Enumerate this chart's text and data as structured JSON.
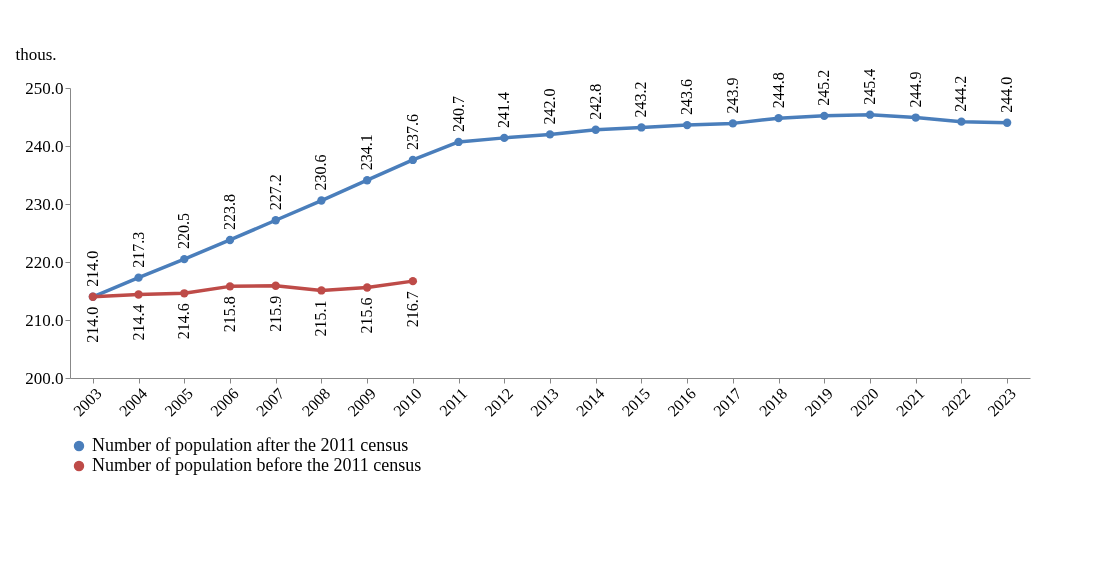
{
  "chart_data": {
    "type": "line",
    "ylabel": "thous.",
    "categories": [
      "2003",
      "2004",
      "2005",
      "2006",
      "2007",
      "2008",
      "2009",
      "2010",
      "2011",
      "2012",
      "2013",
      "2014",
      "2015",
      "2016",
      "2017",
      "2018",
      "2019",
      "2020",
      "2021",
      "2022",
      "2023"
    ],
    "series": [
      {
        "name": "Number of population after the 2011 census",
        "color": "#4a7ebb",
        "values": [
          214.0,
          217.3,
          220.5,
          223.8,
          227.2,
          230.6,
          234.1,
          237.6,
          240.7,
          241.4,
          242.0,
          242.8,
          243.2,
          243.6,
          243.9,
          244.8,
          245.2,
          245.4,
          244.9,
          244.2,
          244.0
        ],
        "value_labels": [
          "214.0",
          "217.3",
          "220.5",
          "223.8",
          "227.2",
          "230.6",
          "234.1",
          "237.6",
          "240.7",
          "241.4",
          "242.0",
          "242.8",
          "243.2",
          "243.6",
          "243.9",
          "244.8",
          "245.2",
          "245.4",
          "244.9",
          "244.2",
          "244.0"
        ]
      },
      {
        "name": "Number of population before the 2011 census",
        "color": "#be4b48",
        "values": [
          214.0,
          214.4,
          214.6,
          215.8,
          215.9,
          215.1,
          215.6,
          216.7,
          null,
          null,
          null,
          null,
          null,
          null,
          null,
          null,
          null,
          null,
          null,
          null,
          null
        ],
        "value_labels": [
          "214.0",
          "214.4",
          "214.6",
          "215.8",
          "215.9",
          "215.1",
          "215.6",
          "216.7",
          null,
          null,
          null,
          null,
          null,
          null,
          null,
          null,
          null,
          null,
          null,
          null,
          null
        ]
      }
    ],
    "ylim": [
      200,
      250
    ],
    "yticks": [
      {
        "value": 200,
        "label": "200.0"
      },
      {
        "value": 210,
        "label": "210.0"
      },
      {
        "value": 220,
        "label": "220.0"
      },
      {
        "value": 230,
        "label": "230.0"
      },
      {
        "value": 240,
        "label": "240.0"
      },
      {
        "value": 250,
        "label": "250.0"
      }
    ],
    "grid": false,
    "legend": "bottom",
    "marker": "circle",
    "line_style": "solid"
  }
}
